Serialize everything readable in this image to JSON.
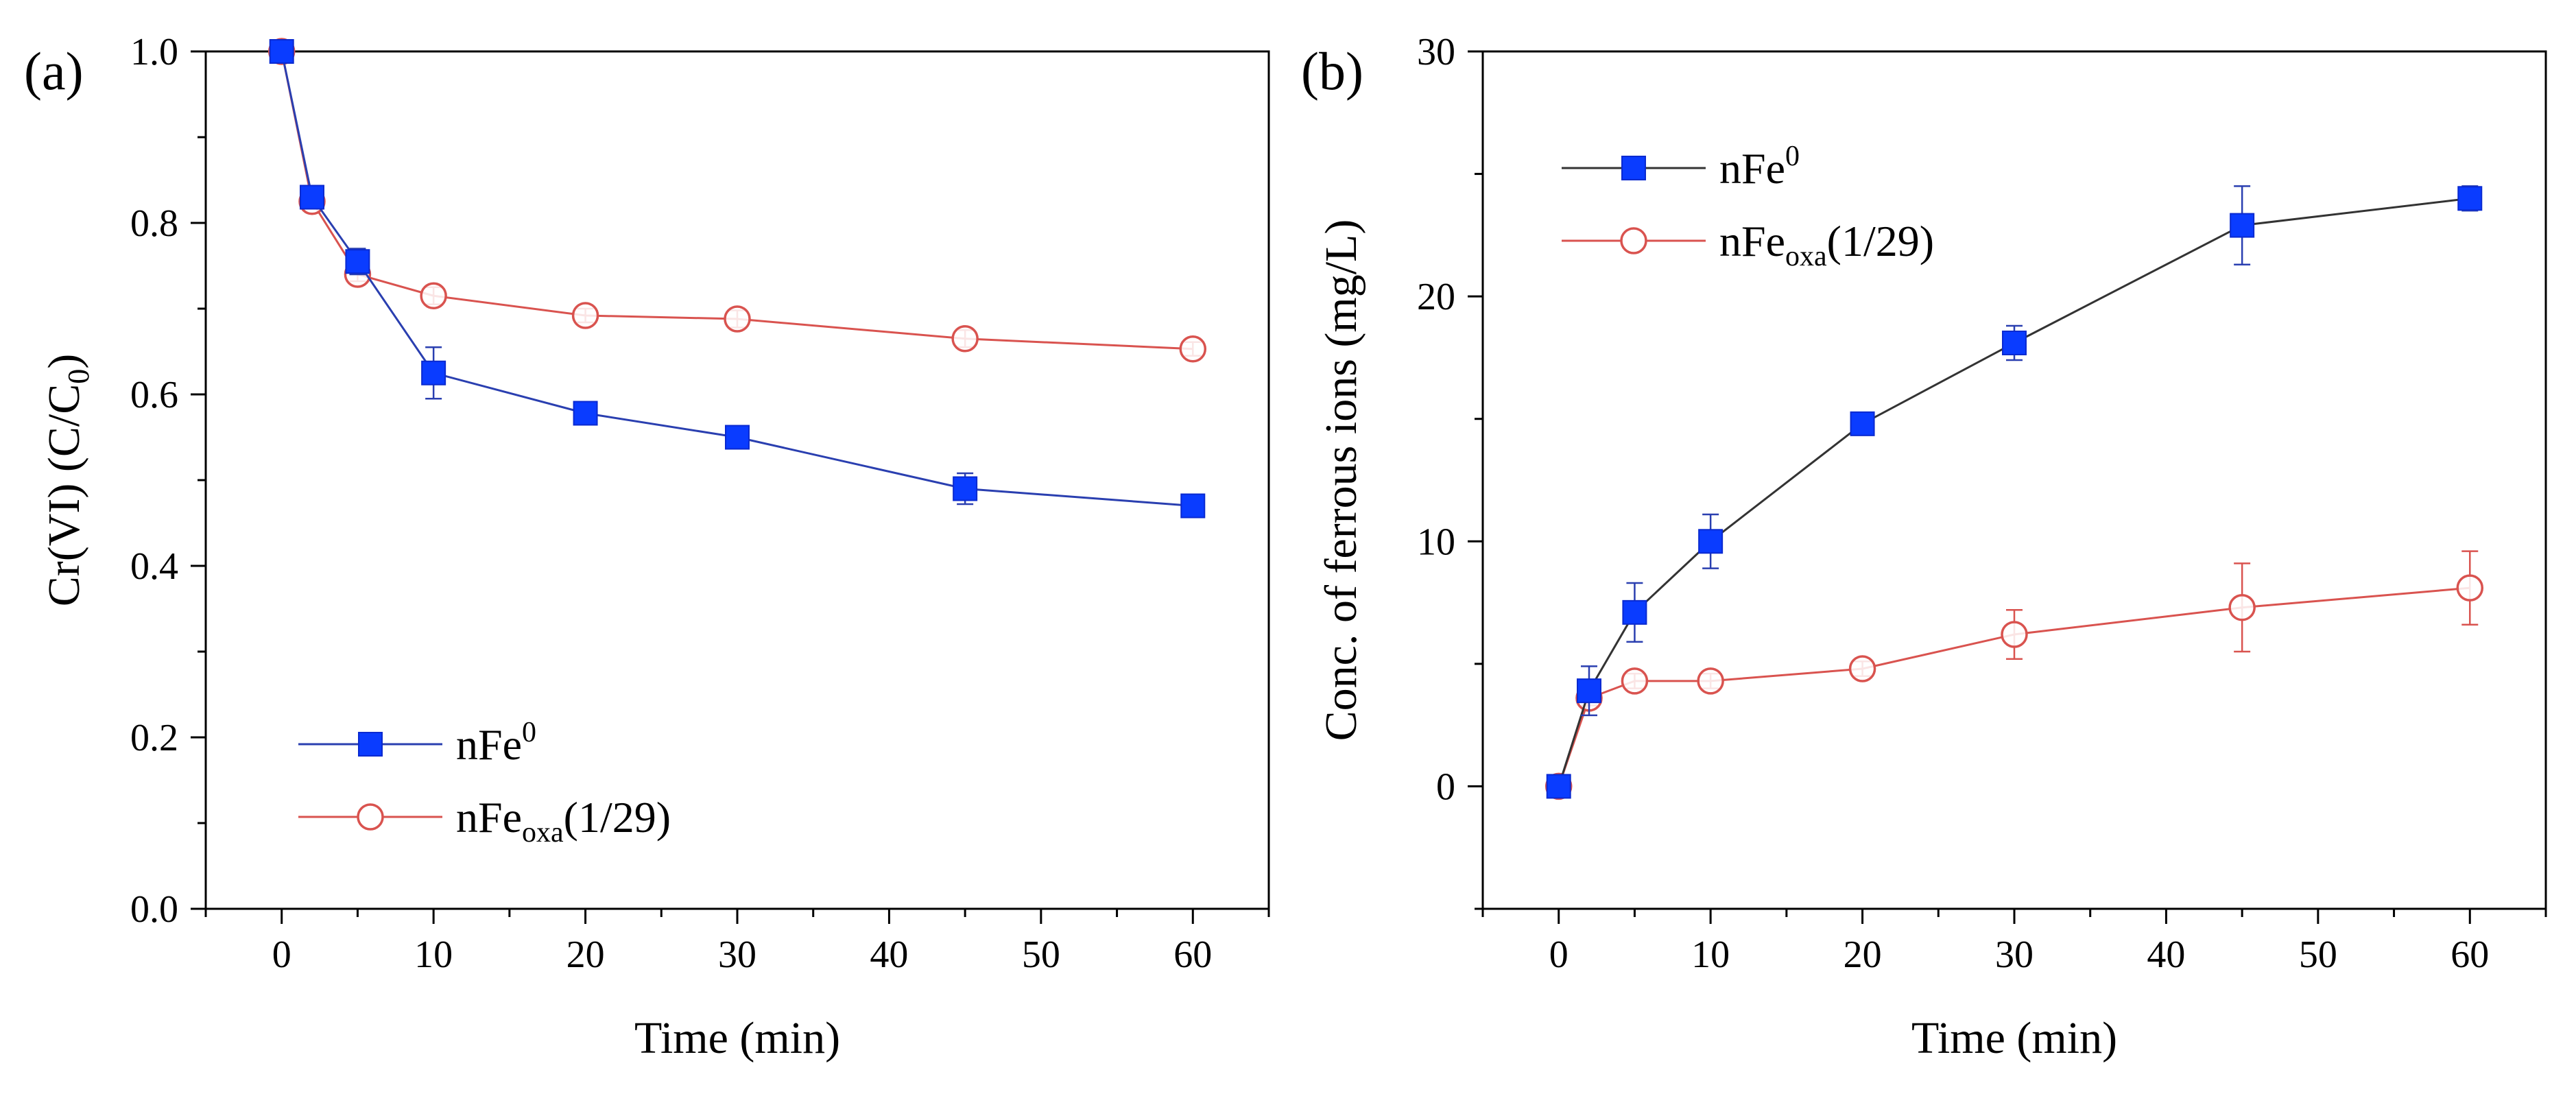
{
  "chart_data": [
    {
      "panel_label": "(a)",
      "type": "line",
      "xlabel": "Time (min)",
      "ylabel_parts": [
        "Cr(VI) (C/C",
        "0",
        ")"
      ],
      "xlim": [
        -5,
        65
      ],
      "ylim": [
        0.0,
        1.0
      ],
      "xticks": [
        0,
        10,
        20,
        30,
        40,
        50,
        60
      ],
      "yticks": [
        "0.0",
        "0.2",
        "0.4",
        "0.6",
        "0.8",
        "1.0"
      ],
      "ytick_values": [
        0.0,
        0.2,
        0.4,
        0.6,
        0.8,
        1.0
      ],
      "legend_position": "bottom-left",
      "series": [
        {
          "name": "nFe0",
          "legend": {
            "base": "nFe",
            "sup": "0",
            "sub": ""
          },
          "marker": "filled-square",
          "marker_color": "#0a3cff",
          "line_color": "#2a3fb0",
          "x": [
            0,
            2,
            5,
            10,
            20,
            30,
            45,
            60
          ],
          "y": [
            1.0,
            0.83,
            0.755,
            0.625,
            0.578,
            0.55,
            0.49,
            0.47
          ],
          "err": [
            0.005,
            0.008,
            0.015,
            0.03,
            0.01,
            0.008,
            0.018,
            0.006
          ]
        },
        {
          "name": "nFeoxa(1/29)",
          "legend": {
            "base": "nFe",
            "sup": "",
            "sub": "oxa",
            "tail": "(1/29)"
          },
          "marker": "open-circle",
          "marker_color": "#d9534f",
          "line_color": "#d9534f",
          "x": [
            0,
            2,
            5,
            10,
            20,
            30,
            45,
            60
          ],
          "y": [
            1.0,
            0.825,
            0.74,
            0.715,
            0.692,
            0.688,
            0.665,
            0.653
          ],
          "err": [
            0.004,
            0.006,
            0.008,
            0.01,
            0.008,
            0.01,
            0.01,
            0.008
          ]
        }
      ]
    },
    {
      "panel_label": "(b)",
      "type": "line",
      "xlabel": "Time (min)",
      "ylabel": "Conc. of ferrous ions (mg/L)",
      "xlim": [
        -5,
        65
      ],
      "ylim": [
        -5,
        30
      ],
      "xticks": [
        0,
        10,
        20,
        30,
        40,
        50,
        60
      ],
      "yticks": [
        "0",
        "10",
        "20",
        "30"
      ],
      "ytick_values": [
        0,
        10,
        20,
        30
      ],
      "legend_position": "top-left",
      "series": [
        {
          "name": "nFe0",
          "legend": {
            "base": "nFe",
            "sup": "0",
            "sub": ""
          },
          "marker": "filled-square",
          "marker_color": "#0a3cff",
          "line_color": "#333333",
          "x": [
            0,
            2,
            5,
            10,
            20,
            30,
            45,
            60
          ],
          "y": [
            0.0,
            3.9,
            7.1,
            10.0,
            14.8,
            18.1,
            22.9,
            24.0
          ],
          "err": [
            0.2,
            1.0,
            1.2,
            1.1,
            0.3,
            0.7,
            1.6,
            0.5
          ]
        },
        {
          "name": "nFeoxa(1/29)",
          "legend": {
            "base": "nFe",
            "sup": "",
            "sub": "oxa",
            "tail": "(1/29)"
          },
          "marker": "open-circle",
          "marker_color": "#d9534f",
          "line_color": "#d9534f",
          "x": [
            0,
            2,
            5,
            10,
            20,
            30,
            45,
            60
          ],
          "y": [
            0.0,
            3.6,
            4.3,
            4.3,
            4.8,
            6.2,
            7.3,
            8.1
          ],
          "err": [
            0.2,
            0.3,
            0.3,
            0.3,
            0.3,
            1.0,
            1.8,
            1.5
          ]
        }
      ]
    }
  ]
}
